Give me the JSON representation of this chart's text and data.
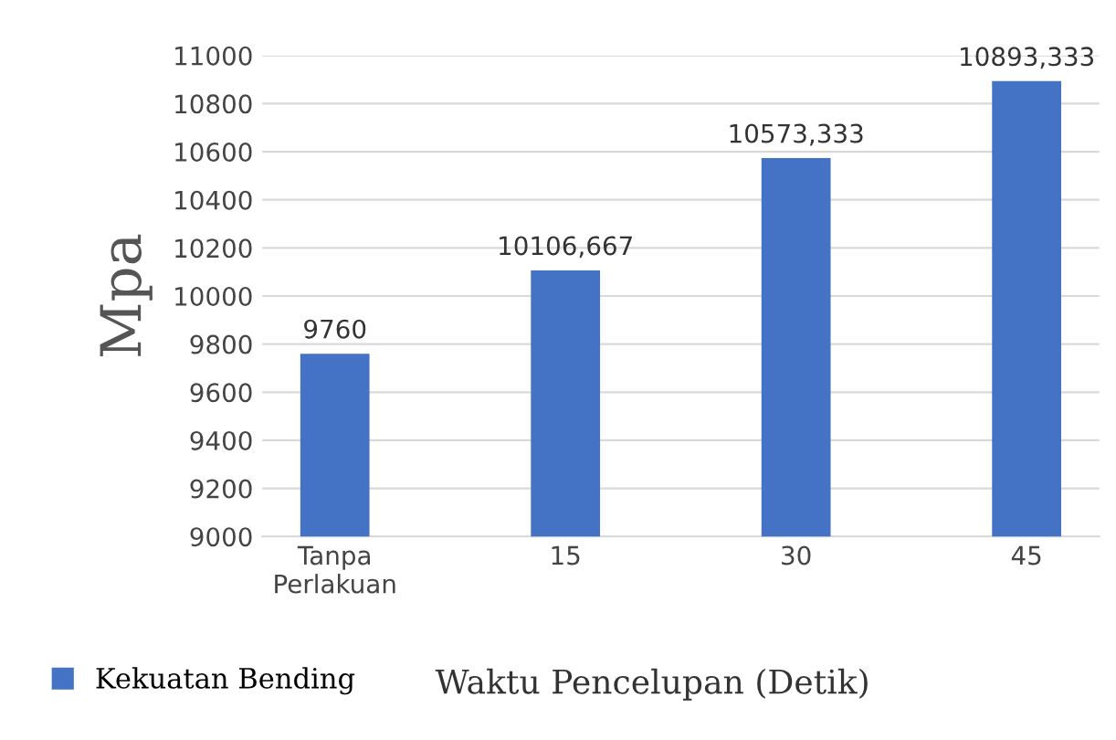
{
  "chart_data": {
    "type": "bar",
    "xlabel": "Waktu Pencelupan (Detik)",
    "ylabel": "Mpa",
    "categories": [
      "Tanpa\nPerlakuan",
      "15",
      "30",
      "45"
    ],
    "series": [
      {
        "name": "Kekuatan Bending",
        "color": "#4472c4",
        "values": [
          9760,
          10106.667,
          10573.333,
          10893.333
        ],
        "value_labels": [
          "9760",
          "10106,667",
          "10573,333",
          "10893,333"
        ]
      }
    ],
    "ylim": [
      9000,
      11000
    ],
    "yticks": [
      9000,
      9200,
      9400,
      9600,
      9800,
      10000,
      10200,
      10400,
      10600,
      10800,
      11000
    ],
    "grid": "y",
    "legend": "bottom left"
  }
}
